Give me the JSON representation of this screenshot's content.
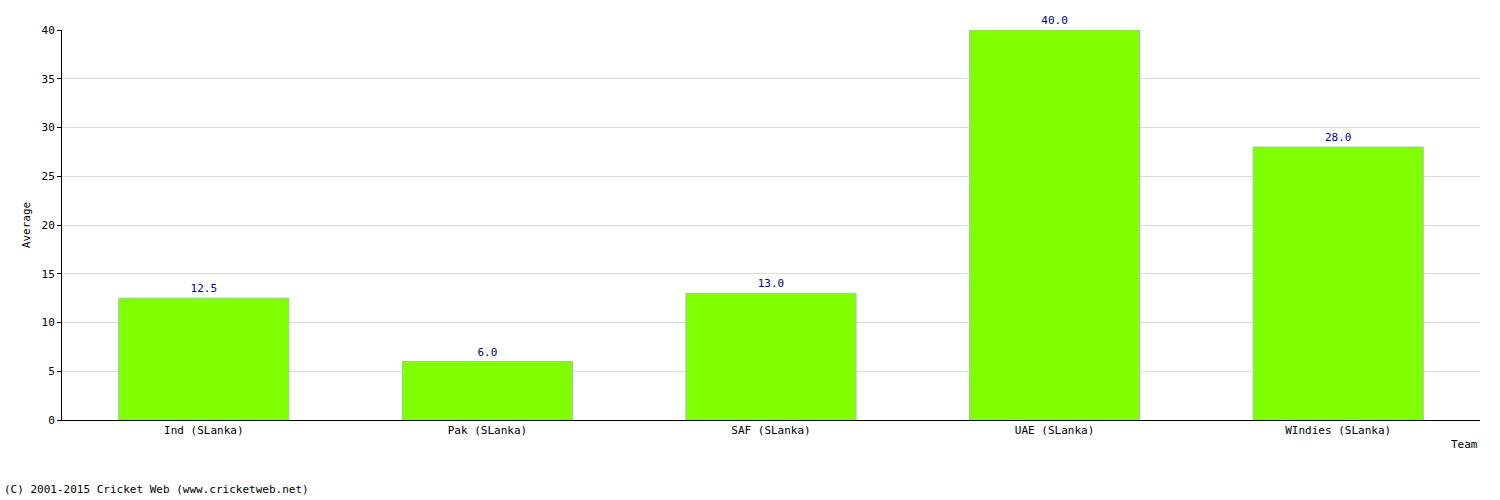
{
  "chart_data": {
    "type": "bar",
    "categories": [
      "Ind (SLanka)",
      "Pak (SLanka)",
      "SAF (SLanka)",
      "UAE (SLanka)",
      "WIndies (SLanka)"
    ],
    "values": [
      12.5,
      6.0,
      13.0,
      40.0,
      28.0
    ],
    "value_labels": [
      "12.5",
      "6.0",
      "13.0",
      "40.0",
      "28.0"
    ],
    "color": "#80ff00",
    "x_label": "Team",
    "y_label": "Average",
    "ylim": [
      0,
      40
    ],
    "yticks": [
      0,
      5,
      10,
      15,
      20,
      25,
      30,
      35,
      40
    ],
    "grid": true,
    "data_labels": true,
    "annotations": [
      "(C) 2001-2015 Cricket Web (www.cricketweb.net)"
    ]
  }
}
